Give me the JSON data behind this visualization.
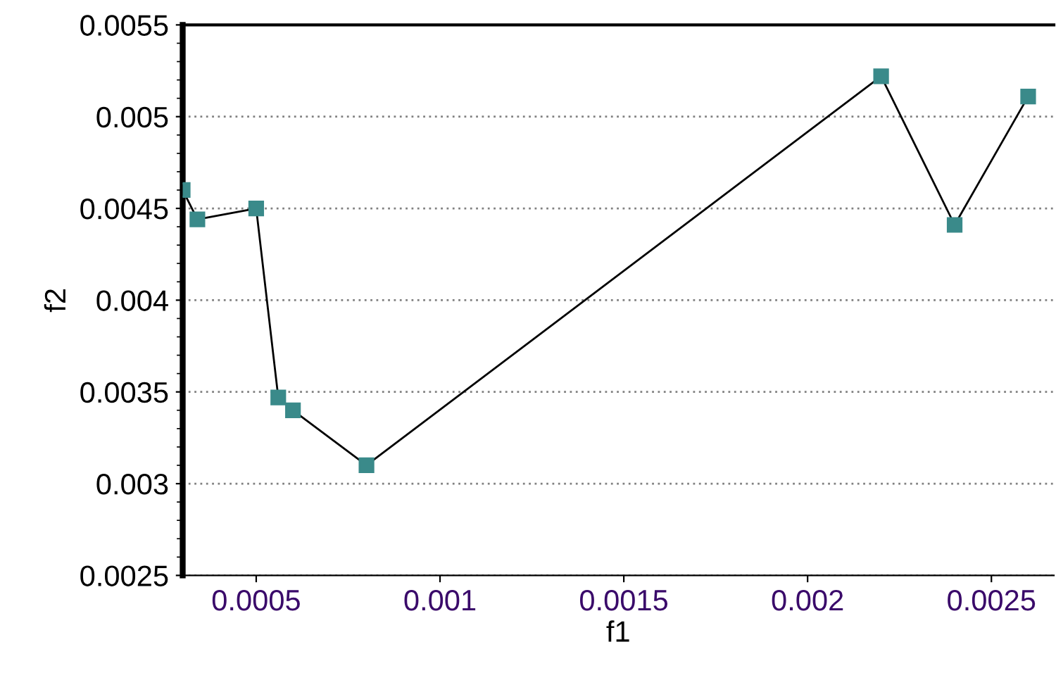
{
  "chart_data": {
    "type": "line",
    "xlabel": "f1",
    "ylabel": "f2",
    "x": [
      0.0003,
      0.00034,
      0.0005,
      0.00056,
      0.0006,
      0.0008,
      0.0022,
      0.0024,
      0.0026
    ],
    "series": [
      {
        "color": "#3a8a8a",
        "values": [
          0.0046,
          0.00444,
          0.0045,
          0.00347,
          0.0034,
          0.0031,
          0.00522,
          0.00441,
          0.00511
        ]
      }
    ],
    "xlim": [
      0.0003,
      0.00267
    ],
    "xticks": [
      0.0005,
      0.001,
      0.0015,
      0.002,
      0.0025
    ],
    "ylim": [
      0.0025,
      0.0055
    ],
    "yticks": [
      0.0025,
      0.003,
      0.0035,
      0.004,
      0.0045,
      0.005,
      0.0055
    ],
    "grid": "y",
    "marker": "square",
    "line_style": "solid",
    "legend": false
  }
}
